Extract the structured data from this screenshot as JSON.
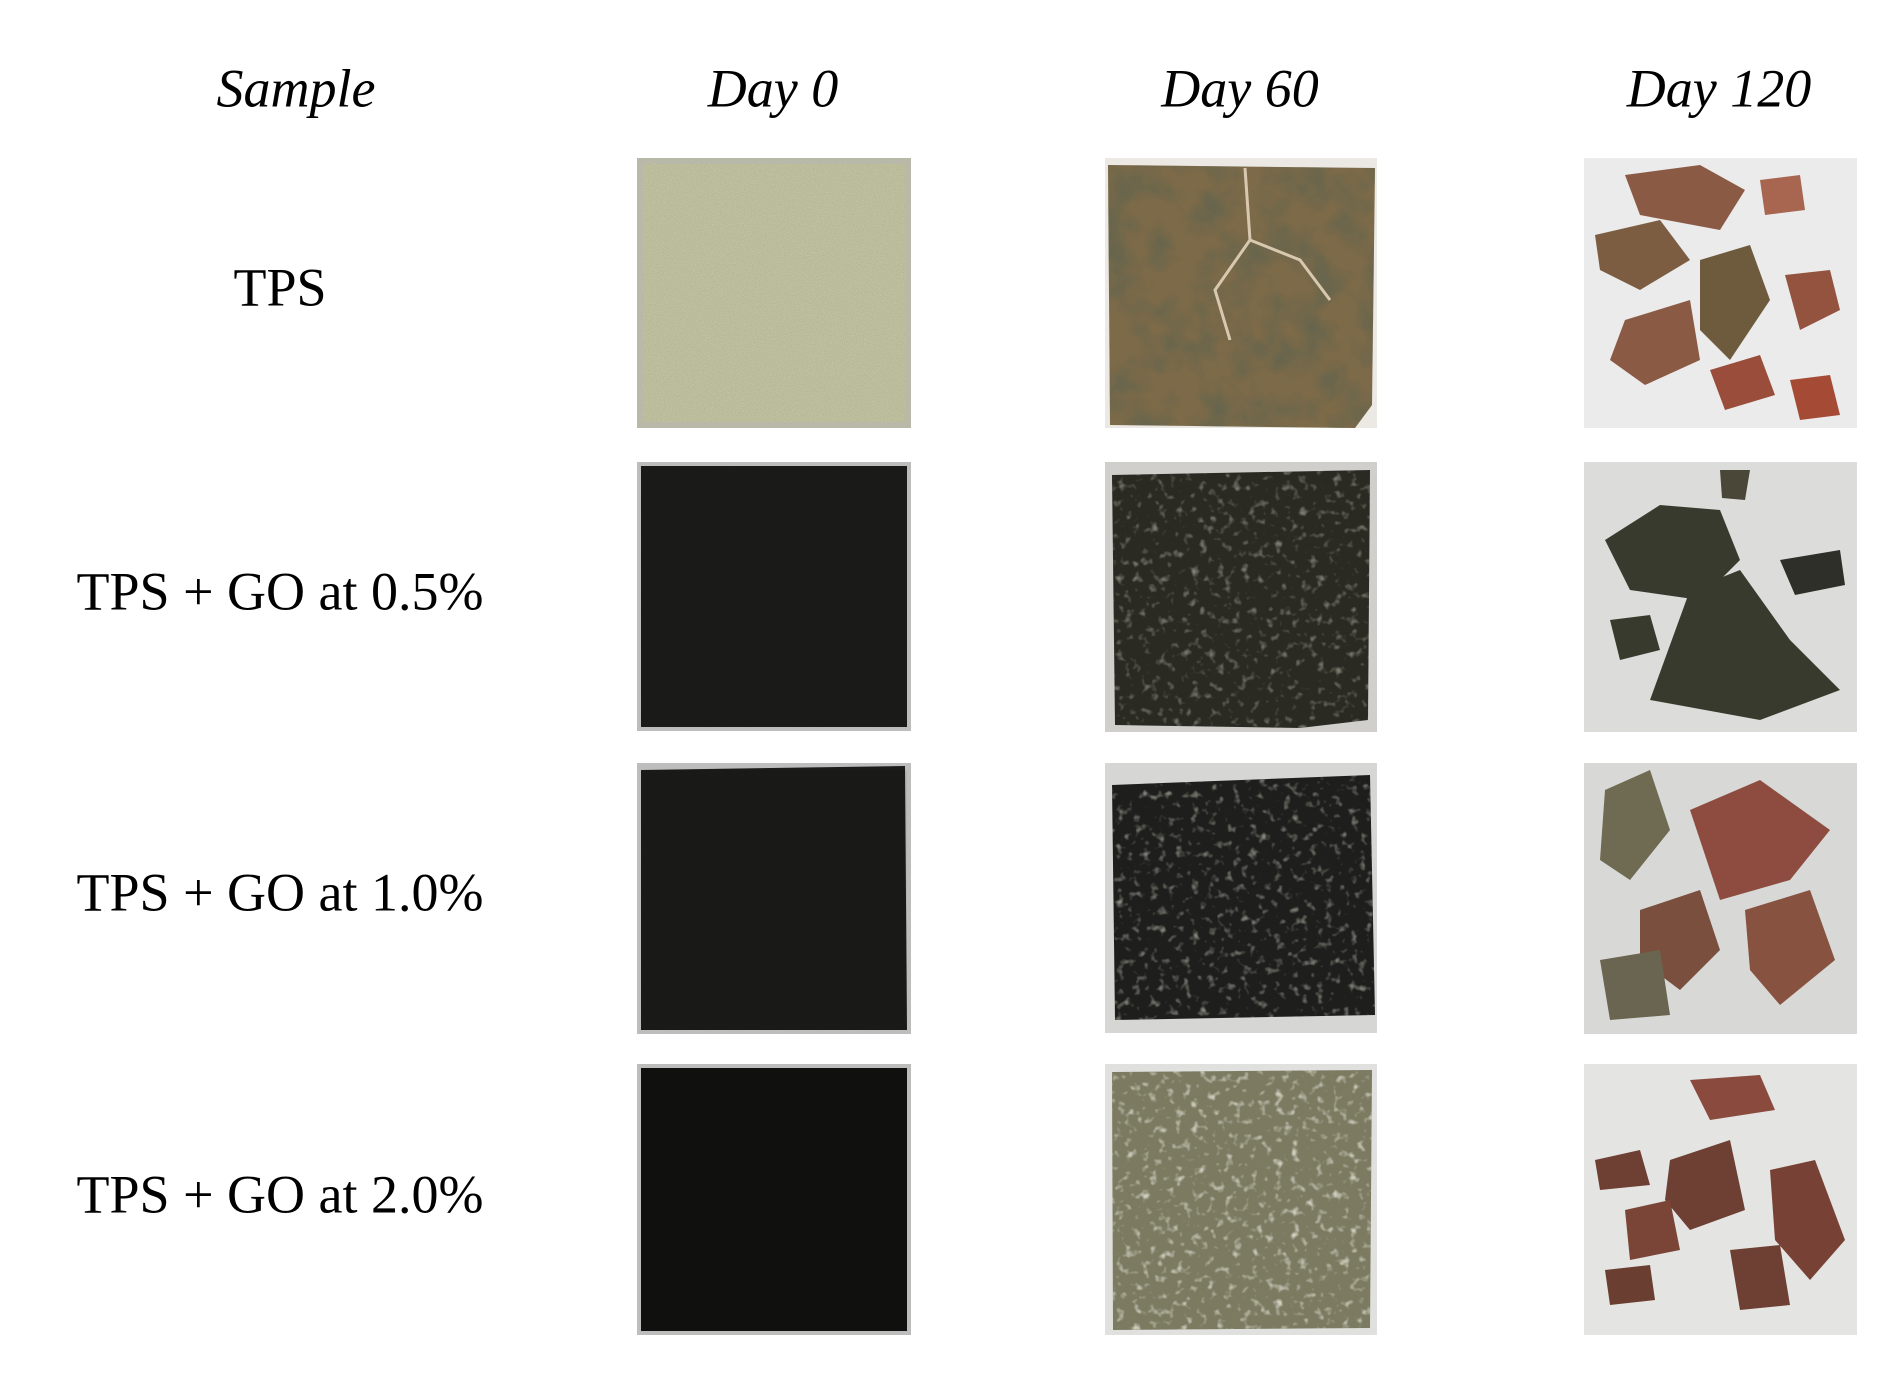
{
  "table": {
    "header": [
      "Sample",
      "Day 0",
      "Day 60",
      "Day 120"
    ],
    "rows": [
      [
        "TPS"
      ],
      [
        "TPS + GO at 0.5%"
      ],
      [
        "TPS + GO at 1.0%"
      ],
      [
        "TPS + GO at 2.0%"
      ]
    ]
  }
}
